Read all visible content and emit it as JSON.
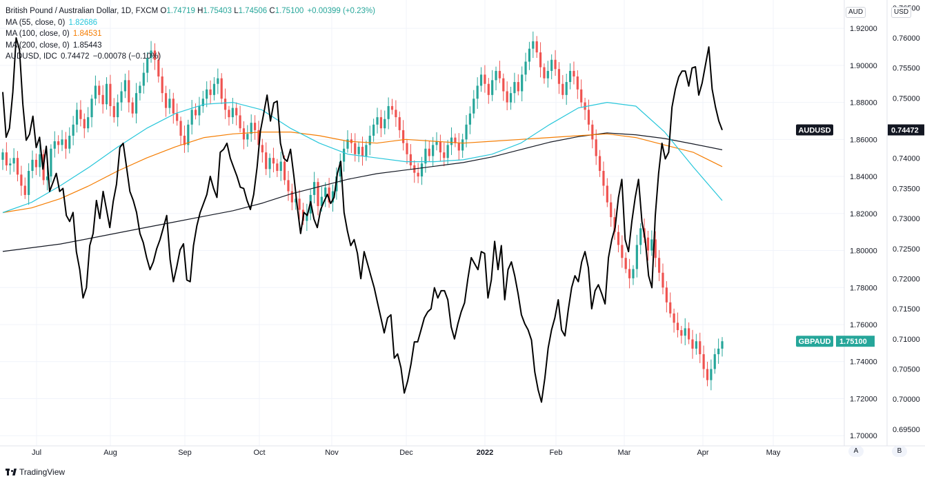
{
  "legend": {
    "main_title": "British Pound / Australian Dollar, 1D, FXCM",
    "o_label": "O",
    "o_value": "1.74719",
    "h_label": "H",
    "h_value": "1.75403",
    "l_label": "L",
    "l_value": "1.74506",
    "c_label": "C",
    "c_value": "1.75100",
    "change": "+0.00399 (+0.23%)",
    "ma55_label": "MA (55, close, 0)",
    "ma55_value": "1.82686",
    "ma100_label": "MA (100, close, 0)",
    "ma100_value": "1.84531",
    "ma200_label": "MA (200, close, 0)",
    "ma200_value": "1.85443",
    "audusd_label": "AUDUSD, IDC",
    "audusd_value": "0.74472",
    "audusd_change": "−0.00078 (−0.10%)"
  },
  "scale_buttons": {
    "left": "AUD",
    "right": "USD"
  },
  "bottom_buttons": {
    "a": "A",
    "b": "B"
  },
  "branding": {
    "name": "TradingView"
  },
  "colors": {
    "up": "#26a69a",
    "down": "#ef5350",
    "ma55": "#26c6da",
    "ma100": "#f57c00",
    "ma200": "#131722",
    "audusd": "#000000",
    "grid": "#f0f3fa",
    "label_main": "#26a69a"
  },
  "chart_data": {
    "type": "line",
    "title": "British Pound / Australian Dollar, 1D, FXCM",
    "x_ticks": [
      "Jul",
      "Aug",
      "Sep",
      "Oct",
      "Nov",
      "Dec",
      "2022",
      "Feb",
      "Mar",
      "Apr",
      "May"
    ],
    "y_left_ticks": [
      "1.70000",
      "1.72000",
      "1.74000",
      "1.76000",
      "1.78000",
      "1.80000",
      "1.82000",
      "1.84000",
      "1.86000",
      "1.88000",
      "1.90000",
      "1.92000"
    ],
    "y_right_ticks": [
      "0.69500",
      "0.70000",
      "0.70500",
      "0.71000",
      "0.71500",
      "0.72000",
      "0.72500",
      "0.73000",
      "0.73500",
      "0.74000",
      "0.74500",
      "0.75000",
      "0.75500",
      "0.76000",
      "0.76500"
    ],
    "ylim_left": [
      1.6945,
      1.9353
    ],
    "ylim_right": [
      0.69223,
      0.7663
    ],
    "current_labels": [
      {
        "name": "AUDUSD",
        "value": "0.74472"
      },
      {
        "name": "GBPAUD",
        "value": "1.75100"
      }
    ],
    "series": [
      {
        "name": "GBPAUD",
        "kind": "candles",
        "axis": "left",
        "closes": [
          1.853,
          1.846,
          1.847,
          1.85,
          1.841,
          1.835,
          1.83,
          1.843,
          1.849,
          1.845,
          1.852,
          1.838,
          1.84,
          1.855,
          1.859,
          1.857,
          1.86,
          1.855,
          1.862,
          1.868,
          1.876,
          1.871,
          1.866,
          1.872,
          1.882,
          1.889,
          1.884,
          1.879,
          1.89,
          1.878,
          1.872,
          1.88,
          1.886,
          1.892,
          1.88,
          1.874,
          1.885,
          1.889,
          1.896,
          1.904,
          1.908,
          1.903,
          1.894,
          1.885,
          1.877,
          1.882,
          1.874,
          1.87,
          1.862,
          1.857,
          1.868,
          1.876,
          1.873,
          1.878,
          1.882,
          1.887,
          1.884,
          1.89,
          1.893,
          1.882,
          1.876,
          1.872,
          1.877,
          1.873,
          1.866,
          1.86,
          1.863,
          1.869,
          1.865,
          1.857,
          1.853,
          1.844,
          1.85,
          1.847,
          1.843,
          1.848,
          1.838,
          1.832,
          1.826,
          1.828,
          1.822,
          1.816,
          1.82,
          1.83,
          1.837,
          1.824,
          1.829,
          1.834,
          1.826,
          1.832,
          1.84,
          1.848,
          1.855,
          1.86,
          1.858,
          1.852,
          1.856,
          1.851,
          1.857,
          1.862,
          1.868,
          1.872,
          1.866,
          1.871,
          1.878,
          1.876,
          1.872,
          1.865,
          1.858,
          1.852,
          1.846,
          1.842,
          1.84,
          1.847,
          1.855,
          1.851,
          1.857,
          1.859,
          1.853,
          1.85,
          1.857,
          1.861,
          1.858,
          1.854,
          1.86,
          1.868,
          1.874,
          1.882,
          1.889,
          1.895,
          1.89,
          1.884,
          1.892,
          1.897,
          1.893,
          1.886,
          1.88,
          1.885,
          1.891,
          1.886,
          1.895,
          1.902,
          1.909,
          1.913,
          1.907,
          1.899,
          1.893,
          1.897,
          1.903,
          1.898,
          1.89,
          1.884,
          1.891,
          1.897,
          1.894,
          1.887,
          1.88,
          1.876,
          1.868,
          1.86,
          1.851,
          1.843,
          1.835,
          1.826,
          1.818,
          1.81,
          1.803,
          1.796,
          1.79,
          1.785,
          1.79,
          1.803,
          1.812,
          1.807,
          1.8,
          1.806,
          1.796,
          1.788,
          1.78,
          1.772,
          1.766,
          1.761,
          1.757,
          1.754,
          1.758,
          1.752,
          1.747,
          1.751,
          1.744,
          1.736,
          1.73,
          1.736,
          1.744,
          1.747,
          1.751
        ],
        "approximate": true
      },
      {
        "name": "MA (55, close, 0)",
        "axis": "left",
        "points": [
          1.8205,
          1.826,
          1.835,
          1.845,
          1.856,
          1.866,
          1.874,
          1.879,
          1.88,
          1.876,
          1.866,
          1.858,
          1.852,
          1.85,
          1.848,
          1.848,
          1.849,
          1.852,
          1.858,
          1.868,
          1.877,
          1.88,
          1.878,
          1.864,
          1.845,
          1.827
        ],
        "approximate": true
      },
      {
        "name": "MA (100, close, 0)",
        "axis": "left",
        "points": [
          1.8205,
          1.823,
          1.828,
          1.835,
          1.843,
          1.85,
          1.856,
          1.861,
          1.863,
          1.864,
          1.864,
          1.862,
          1.859,
          1.858,
          1.86,
          1.859,
          1.858,
          1.859,
          1.86,
          1.861,
          1.862,
          1.863,
          1.861,
          1.857,
          1.853,
          1.8453
        ],
        "approximate": true
      },
      {
        "name": "MA (200, close, 0)",
        "axis": "left",
        "points": [
          1.7995,
          1.8015,
          1.8035,
          1.8065,
          1.8095,
          1.8125,
          1.8155,
          1.8185,
          1.8215,
          1.8255,
          1.8305,
          1.8345,
          1.8385,
          1.8415,
          1.8435,
          1.8455,
          1.8475,
          1.8505,
          1.8545,
          1.8585,
          1.8615,
          1.8635,
          1.8625,
          1.8605,
          1.8575,
          1.8544
        ],
        "approximate": true
      },
      {
        "name": "AUDUSD, IDC",
        "axis": "right",
        "points": [
          0.751,
          0.7435,
          0.745,
          0.751,
          0.76,
          0.758,
          0.749,
          0.743,
          0.744,
          0.747,
          0.7418,
          0.7435,
          0.7382,
          0.742,
          0.7345,
          0.736,
          0.7375,
          0.7345,
          0.735,
          0.7305,
          0.7295,
          0.731,
          0.7245,
          0.7215,
          0.7168,
          0.7185,
          0.7255,
          0.7275,
          0.733,
          0.73,
          0.7345,
          0.7315,
          0.7285,
          0.7328,
          0.7357,
          0.7418,
          0.7425,
          0.7385,
          0.7345,
          0.733,
          0.731,
          0.7275,
          0.726,
          0.7235,
          0.7215,
          0.7228,
          0.725,
          0.7265,
          0.7285,
          0.7305,
          0.7232,
          0.7195,
          0.722,
          0.7248,
          0.7258,
          0.7198,
          0.7195,
          0.7255,
          0.7288,
          0.731,
          0.7325,
          0.734,
          0.737,
          0.735,
          0.7335,
          0.741,
          0.7415,
          0.7425,
          0.74,
          0.7385,
          0.737,
          0.7352,
          0.735,
          0.733,
          0.7315,
          0.734,
          0.7385,
          0.7445,
          0.7475,
          0.7505,
          0.7462,
          0.7492,
          0.7495,
          0.7425,
          0.74,
          0.7395,
          0.7415,
          0.737,
          0.732,
          0.7275,
          0.731,
          0.7305,
          0.7328,
          0.7299,
          0.7285,
          0.7315,
          0.7328,
          0.734,
          0.7325,
          0.7335,
          0.7375,
          0.7395,
          0.731,
          0.7279,
          0.7255,
          0.7265,
          0.7242,
          0.72,
          0.7245,
          0.7225,
          0.7205,
          0.7185,
          0.716,
          0.7135,
          0.711,
          0.7135,
          0.714,
          0.7068,
          0.7075,
          0.7052,
          0.701,
          0.703,
          0.7058,
          0.7095,
          0.7095,
          0.7115,
          0.7135,
          0.7145,
          0.715,
          0.7185,
          0.7168,
          0.718,
          0.718,
          0.7165,
          0.712,
          0.71,
          0.7125,
          0.7145,
          0.716,
          0.72,
          0.7235,
          0.7225,
          0.7215,
          0.7245,
          0.7242,
          0.7168,
          0.7198,
          0.7262,
          0.7215,
          0.7255,
          0.7165,
          0.7215,
          0.7228,
          0.7205,
          0.7175,
          0.714,
          0.7125,
          0.7115,
          0.7098,
          0.7045,
          0.7015,
          0.6995,
          0.7035,
          0.7085,
          0.7115,
          0.7135,
          0.7165,
          0.7115,
          0.7105,
          0.7148,
          0.7185,
          0.7205,
          0.7195,
          0.7228,
          0.7245,
          0.7218,
          0.715,
          0.718,
          0.719,
          0.7175,
          0.7158,
          0.7235,
          0.7265,
          0.7285,
          0.7335,
          0.7365,
          0.7265,
          0.7245,
          0.7295,
          0.7335,
          0.7365,
          0.7295,
          0.7265,
          0.7205,
          0.7185,
          0.7305,
          0.7375,
          0.7425,
          0.7399,
          0.741,
          0.7485,
          0.7515,
          0.7535,
          0.7545,
          0.7545,
          0.752,
          0.755,
          0.7552,
          0.7505,
          0.7525,
          0.7555,
          0.7585,
          0.7515,
          0.7485,
          0.7462,
          0.7447
        ],
        "approximate": true
      }
    ]
  }
}
